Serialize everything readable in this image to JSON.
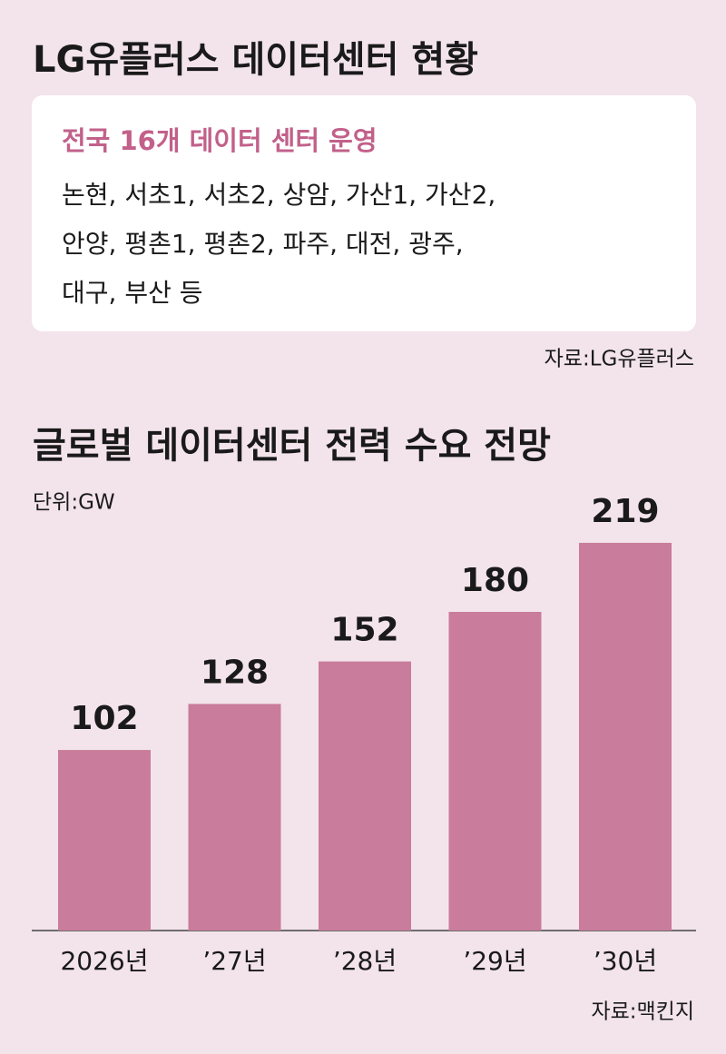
{
  "info": {
    "title": "LG유플러스 데이터센터 현황",
    "box_title": "전국 16개 데이터 센터 운영",
    "box_lines": [
      "논현, 서초1, 서초2, 상암, 가산1, 가산2,",
      "안양, 평촌1, 평촌2, 파주, 대전, 광주,",
      "대구, 부산 등"
    ],
    "source": "자료:LG유플러스"
  },
  "chart_data": {
    "type": "bar",
    "title": "글로벌 데이터센터 전력 수요 전망",
    "unit_label": "단위:GW",
    "categories": [
      "2026년",
      "’27년",
      "’28년",
      "’29년",
      "’30년"
    ],
    "values": [
      102,
      128,
      152,
      180,
      219
    ],
    "color": "#c97c9b",
    "source": "자료:맥킨지"
  }
}
